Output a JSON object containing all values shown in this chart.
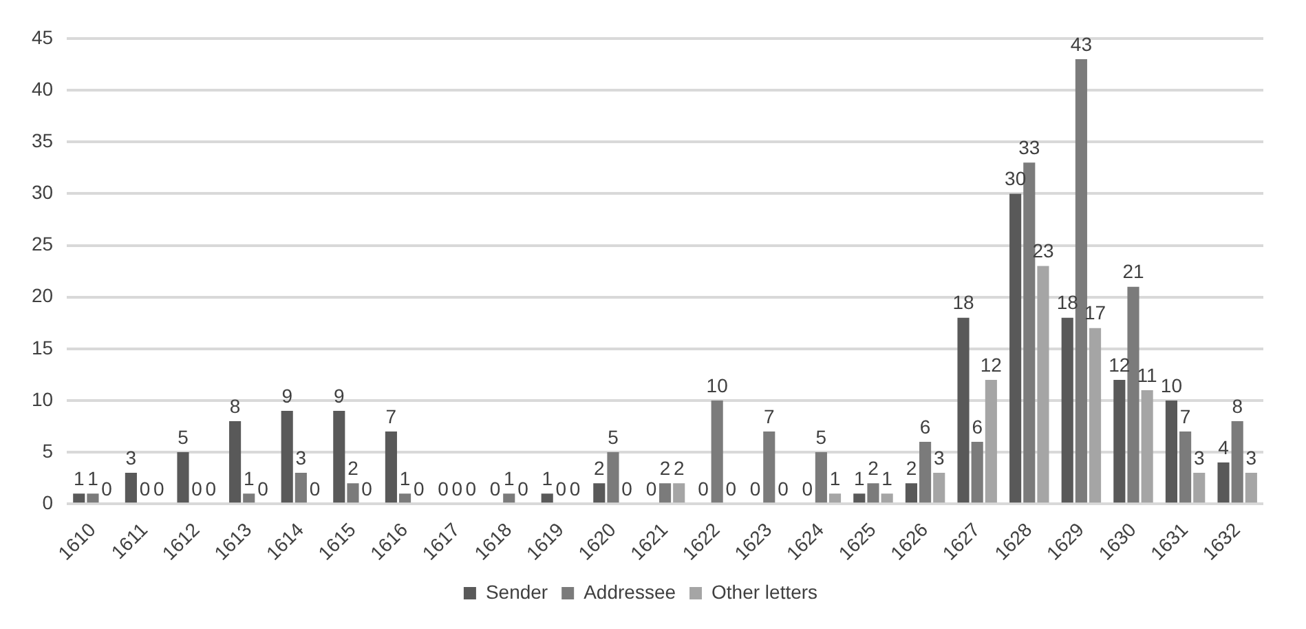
{
  "chart_data": {
    "type": "bar",
    "categories": [
      "1610",
      "1611",
      "1612",
      "1613",
      "1614",
      "1615",
      "1616",
      "1617",
      "1618",
      "1619",
      "1620",
      "1621",
      "1622",
      "1623",
      "1624",
      "1625",
      "1626",
      "1627",
      "1628",
      "1629",
      "1630",
      "1631",
      "1632"
    ],
    "series": [
      {
        "name": "Sender",
        "color": "#595959",
        "values": [
          1,
          3,
          5,
          8,
          9,
          9,
          7,
          0,
          0,
          1,
          2,
          0,
          0,
          0,
          0,
          1,
          2,
          18,
          30,
          18,
          12,
          10,
          4
        ]
      },
      {
        "name": "Addressee",
        "color": "#7b7b7b",
        "values": [
          1,
          0,
          0,
          1,
          3,
          2,
          1,
          0,
          1,
          0,
          5,
          2,
          10,
          7,
          5,
          2,
          6,
          6,
          33,
          43,
          21,
          7,
          8
        ]
      },
      {
        "name": "Other letters",
        "color": "#a5a5a5",
        "values": [
          0,
          0,
          0,
          0,
          0,
          0,
          0,
          0,
          0,
          0,
          0,
          2,
          0,
          0,
          1,
          1,
          3,
          12,
          23,
          17,
          11,
          3,
          3
        ]
      }
    ],
    "ylim": [
      0,
      45
    ],
    "yticks": [
      0,
      5,
      10,
      15,
      20,
      25,
      30,
      35,
      40,
      45
    ],
    "grid": "y",
    "legend": "bottom",
    "data_labels": true
  }
}
